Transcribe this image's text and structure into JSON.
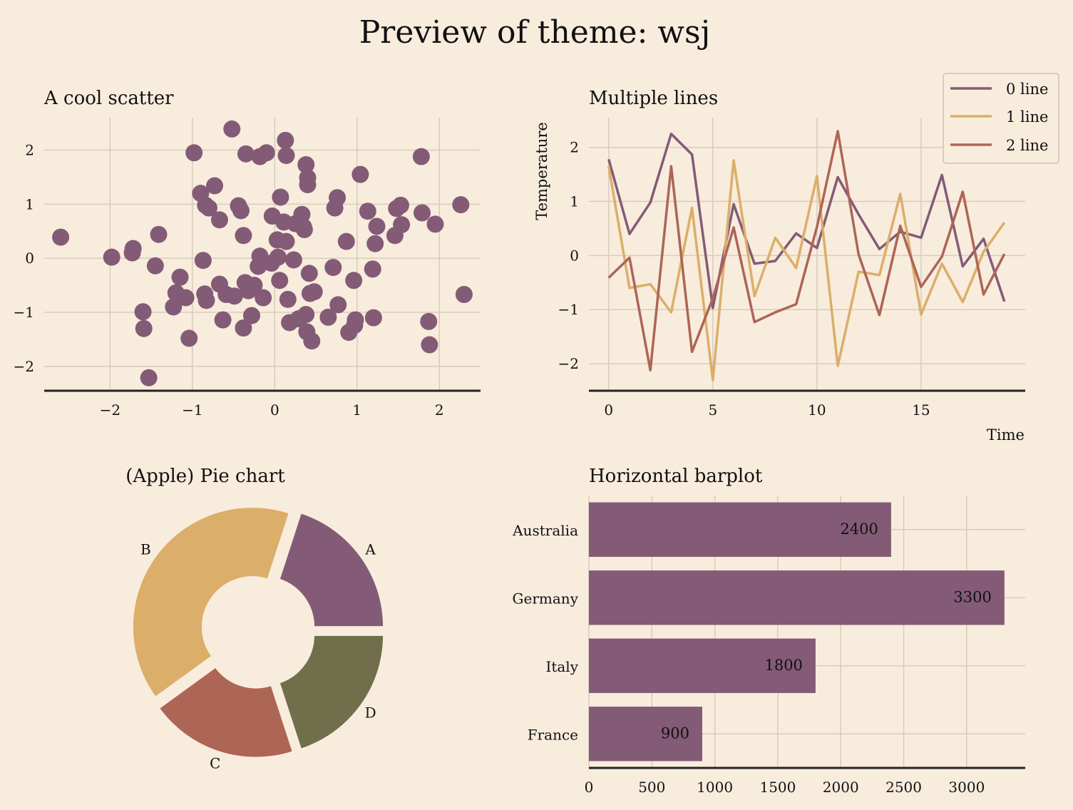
{
  "suptitle": "Preview of theme: wsj",
  "colors": {
    "background": "#f8ecdd",
    "purple": "#835b76",
    "gold": "#dbae6a",
    "red": "#ad6556",
    "olive": "#706e4b",
    "grid": "#d8ccbb",
    "spine": "#222222"
  },
  "chart_data": [
    {
      "type": "scatter",
      "title": "A cool scatter",
      "xlabel": "",
      "ylabel": "",
      "xlim": [
        -2.8,
        2.5
      ],
      "ylim": [
        -2.45,
        2.6
      ],
      "xticks": [
        -2,
        -1,
        0,
        1,
        2
      ],
      "yticks": [
        -2,
        -1,
        0,
        1,
        2
      ],
      "grid": true,
      "color": "#835b76",
      "points": [
        [
          -2.6,
          0.39
        ],
        [
          -1.98,
          0.02
        ],
        [
          -1.72,
          0.18
        ],
        [
          -1.73,
          0.1
        ],
        [
          -1.6,
          -0.99
        ],
        [
          -1.59,
          -1.3
        ],
        [
          -1.53,
          -2.21
        ],
        [
          -1.45,
          -0.14
        ],
        [
          -1.41,
          0.44
        ],
        [
          -1.23,
          -0.9
        ],
        [
          -1.2,
          -0.64
        ],
        [
          -1.15,
          -0.35
        ],
        [
          -1.08,
          -0.73
        ],
        [
          -1.04,
          -1.48
        ],
        [
          -0.98,
          1.95
        ],
        [
          -0.9,
          1.2
        ],
        [
          -0.87,
          -0.04
        ],
        [
          -0.85,
          -0.66
        ],
        [
          -0.83,
          -0.78
        ],
        [
          -0.84,
          0.98
        ],
        [
          -0.8,
          0.93
        ],
        [
          -0.73,
          1.34
        ],
        [
          -0.67,
          0.71
        ],
        [
          -0.67,
          -0.48
        ],
        [
          -0.63,
          -1.14
        ],
        [
          -0.59,
          -0.67
        ],
        [
          -0.52,
          2.39
        ],
        [
          -0.49,
          -0.7
        ],
        [
          -0.44,
          0.97
        ],
        [
          -0.41,
          0.88
        ],
        [
          -0.38,
          0.42
        ],
        [
          -0.38,
          -1.29
        ],
        [
          -0.36,
          -0.45
        ],
        [
          -0.35,
          1.93
        ],
        [
          -0.32,
          -0.6
        ],
        [
          -0.28,
          -1.06
        ],
        [
          -0.25,
          -0.5
        ],
        [
          -0.2,
          -0.15
        ],
        [
          -0.18,
          1.88
        ],
        [
          -0.18,
          0.04
        ],
        [
          -0.14,
          -0.73
        ],
        [
          -0.1,
          1.95
        ],
        [
          -0.04,
          -0.09
        ],
        [
          -0.03,
          0.78
        ],
        [
          0.03,
          0.34
        ],
        [
          0.04,
          0.02
        ],
        [
          0.06,
          -0.41
        ],
        [
          0.07,
          1.13
        ],
        [
          0.11,
          0.67
        ],
        [
          0.13,
          2.18
        ],
        [
          0.14,
          1.9
        ],
        [
          0.14,
          0.31
        ],
        [
          0.16,
          -0.76
        ],
        [
          0.18,
          -1.19
        ],
        [
          0.23,
          -0.03
        ],
        [
          0.25,
          0.64
        ],
        [
          0.29,
          -1.12
        ],
        [
          0.33,
          0.81
        ],
        [
          0.35,
          0.58
        ],
        [
          0.36,
          0.53
        ],
        [
          0.38,
          1.73
        ],
        [
          0.38,
          -1.04
        ],
        [
          0.39,
          -1.36
        ],
        [
          0.4,
          1.49
        ],
        [
          0.4,
          1.36
        ],
        [
          0.42,
          -0.28
        ],
        [
          0.43,
          -0.65
        ],
        [
          0.45,
          -1.53
        ],
        [
          0.48,
          -0.62
        ],
        [
          0.65,
          -1.09
        ],
        [
          0.71,
          -0.17
        ],
        [
          0.73,
          0.93
        ],
        [
          0.76,
          1.12
        ],
        [
          0.77,
          -0.86
        ],
        [
          0.87,
          0.31
        ],
        [
          0.9,
          -1.37
        ],
        [
          0.96,
          -0.41
        ],
        [
          0.97,
          -1.24
        ],
        [
          0.98,
          -1.14
        ],
        [
          1.04,
          1.55
        ],
        [
          1.13,
          0.87
        ],
        [
          1.19,
          -0.2
        ],
        [
          1.2,
          -1.1
        ],
        [
          1.22,
          0.27
        ],
        [
          1.24,
          0.59
        ],
        [
          1.46,
          0.42
        ],
        [
          1.48,
          0.92
        ],
        [
          1.54,
          0.62
        ],
        [
          1.53,
          0.98
        ],
        [
          1.79,
          0.84
        ],
        [
          1.78,
          1.88
        ],
        [
          1.87,
          -1.17
        ],
        [
          1.88,
          -1.6
        ],
        [
          1.95,
          0.63
        ],
        [
          2.26,
          0.99
        ],
        [
          2.3,
          -0.67
        ]
      ]
    },
    {
      "type": "line",
      "title": "Multiple lines",
      "xlabel": "Time",
      "ylabel": "Temperature",
      "xlim": [
        -0.95,
        20.0
      ],
      "ylim": [
        -2.5,
        2.55
      ],
      "xticks": [
        0,
        5,
        10,
        15
      ],
      "yticks": [
        -2,
        -1,
        0,
        1,
        2
      ],
      "grid": true,
      "legend": "top-right",
      "x": [
        0,
        1,
        2,
        3,
        4,
        5,
        6,
        7,
        8,
        9,
        10,
        11,
        12,
        13,
        14,
        15,
        16,
        17,
        18,
        19
      ],
      "series": [
        {
          "name": "0 line",
          "color": "#835b76",
          "values": [
            1.78,
            0.4,
            0.98,
            2.25,
            1.87,
            -0.97,
            0.95,
            -0.15,
            -0.1,
            0.41,
            0.14,
            1.45,
            0.76,
            0.12,
            0.44,
            0.33,
            1.49,
            -0.2,
            0.31,
            -0.85
          ]
        },
        {
          "name": "1 line",
          "color": "#dbae6a",
          "values": [
            1.65,
            -0.6,
            -0.53,
            -1.05,
            0.88,
            -2.3,
            1.76,
            -0.75,
            0.33,
            -0.23,
            1.47,
            -2.04,
            -0.3,
            -0.36,
            1.14,
            -1.09,
            -0.15,
            -0.86,
            0.07,
            0.61
          ]
        },
        {
          "name": "2 line",
          "color": "#ad6556",
          "values": [
            -0.41,
            -0.04,
            -2.12,
            1.65,
            -1.78,
            -0.79,
            0.52,
            -1.23,
            -1.05,
            -0.9,
            0.53,
            2.3,
            0.02,
            -1.1,
            0.55,
            -0.58,
            -0.02,
            1.18,
            -0.72,
            0.03
          ]
        }
      ]
    },
    {
      "type": "pie",
      "title": "(Apple) Pie chart",
      "donut": true,
      "slices": [
        {
          "label": "A",
          "value": 20,
          "color": "#835b76"
        },
        {
          "label": "B",
          "value": 40,
          "color": "#dbae6a"
        },
        {
          "label": "C",
          "value": 20,
          "color": "#ad6556"
        },
        {
          "label": "D",
          "value": 20,
          "color": "#706e4b"
        }
      ]
    },
    {
      "type": "bar",
      "orientation": "horizontal",
      "title": "Horizontal barplot",
      "xlabel": "",
      "ylabel": "",
      "xlim": [
        0,
        3465
      ],
      "xticks": [
        0,
        500,
        1000,
        1500,
        2000,
        2500,
        3000
      ],
      "grid": true,
      "color": "#835b76",
      "categories": [
        "Australia",
        "Germany",
        "Italy",
        "France"
      ],
      "values": [
        2400,
        3300,
        1800,
        900
      ],
      "data_labels": [
        "2400",
        "3300",
        "1800",
        "900"
      ]
    }
  ]
}
